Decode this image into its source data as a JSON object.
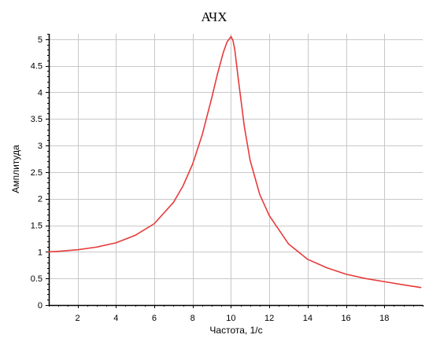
{
  "chart_data": {
    "type": "line",
    "title": "АЧХ",
    "xlabel": "Частота, 1/с",
    "ylabel": "Амплитуда",
    "xlim": [
      0.5,
      20
    ],
    "ylim": [
      0,
      5.1
    ],
    "xticks": [
      "2",
      "4",
      "6",
      "8",
      "10",
      "12",
      "14",
      "16",
      "18"
    ],
    "xtick_values": [
      2,
      4,
      6,
      8,
      10,
      12,
      14,
      16,
      18
    ],
    "yticks": [
      "0",
      "0.5",
      "1",
      "1.5",
      "2",
      "2.5",
      "3",
      "3.5",
      "4",
      "4.5",
      "5"
    ],
    "ytick_values": [
      0,
      0.5,
      1,
      1.5,
      2,
      2.5,
      3,
      3.5,
      4,
      4.5,
      5
    ],
    "grid": true,
    "colors": {
      "line": "#e83a3a",
      "grid": "#c8c8c8",
      "axis": "#000000"
    },
    "series": [
      {
        "name": "АЧХ",
        "x": [
          0.5,
          1,
          2,
          3,
          4,
          5,
          6,
          7,
          7.5,
          8,
          8.5,
          9,
          9.3,
          9.6,
          9.8,
          9.95,
          10,
          10.1,
          10.2,
          10.4,
          10.7,
          11,
          11.5,
          12,
          13,
          14,
          15,
          16,
          17,
          18,
          19,
          19.9
        ],
        "y": [
          1.0,
          1.01,
          1.04,
          1.09,
          1.17,
          1.31,
          1.53,
          1.93,
          2.24,
          2.65,
          3.2,
          3.9,
          4.35,
          4.75,
          4.95,
          5.02,
          5.05,
          4.98,
          4.8,
          4.2,
          3.35,
          2.72,
          2.08,
          1.68,
          1.15,
          0.86,
          0.7,
          0.58,
          0.5,
          0.44,
          0.38,
          0.33
        ]
      }
    ]
  }
}
